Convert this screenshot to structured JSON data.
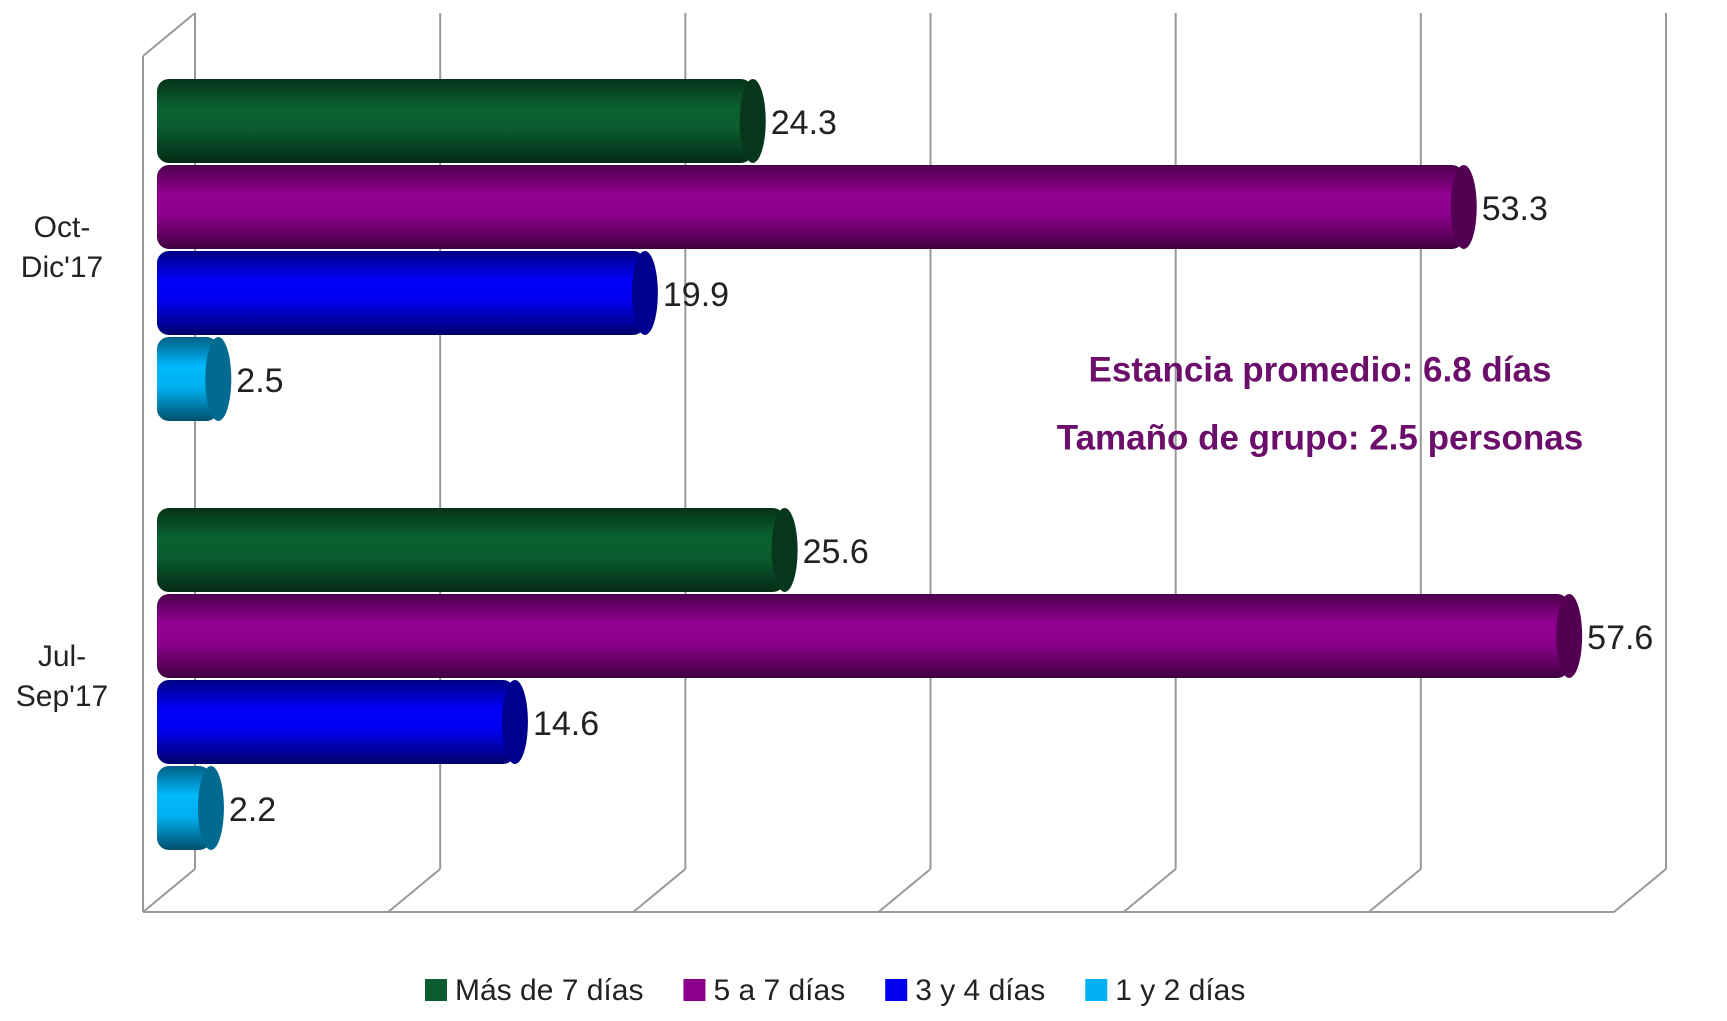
{
  "chart_data": {
    "type": "bar",
    "orientation": "horizontal",
    "categories": [
      "Oct-Dic'17",
      "Jul-Sep'17"
    ],
    "series": [
      {
        "name": "Más de 7 días",
        "color": "#0a5c2e",
        "values": [
          24.3,
          25.6
        ]
      },
      {
        "name": "5 a 7 días",
        "color": "#8b008b",
        "values": [
          53.3,
          57.6
        ]
      },
      {
        "name": "3 y 4 días",
        "color": "#0000ee",
        "values": [
          19.9,
          14.6
        ]
      },
      {
        "name": "1 y 2 días",
        "color": "#00b0f0",
        "values": [
          2.5,
          2.2
        ]
      }
    ],
    "xlim": [
      0,
      60
    ],
    "xticks": [
      0,
      10,
      20,
      30,
      40,
      50,
      60
    ],
    "grid": true,
    "annotations": [
      "Estancia promedio:  6.8 días",
      "Tamaño de grupo:  2.5 personas"
    ],
    "legend": "bottom"
  }
}
